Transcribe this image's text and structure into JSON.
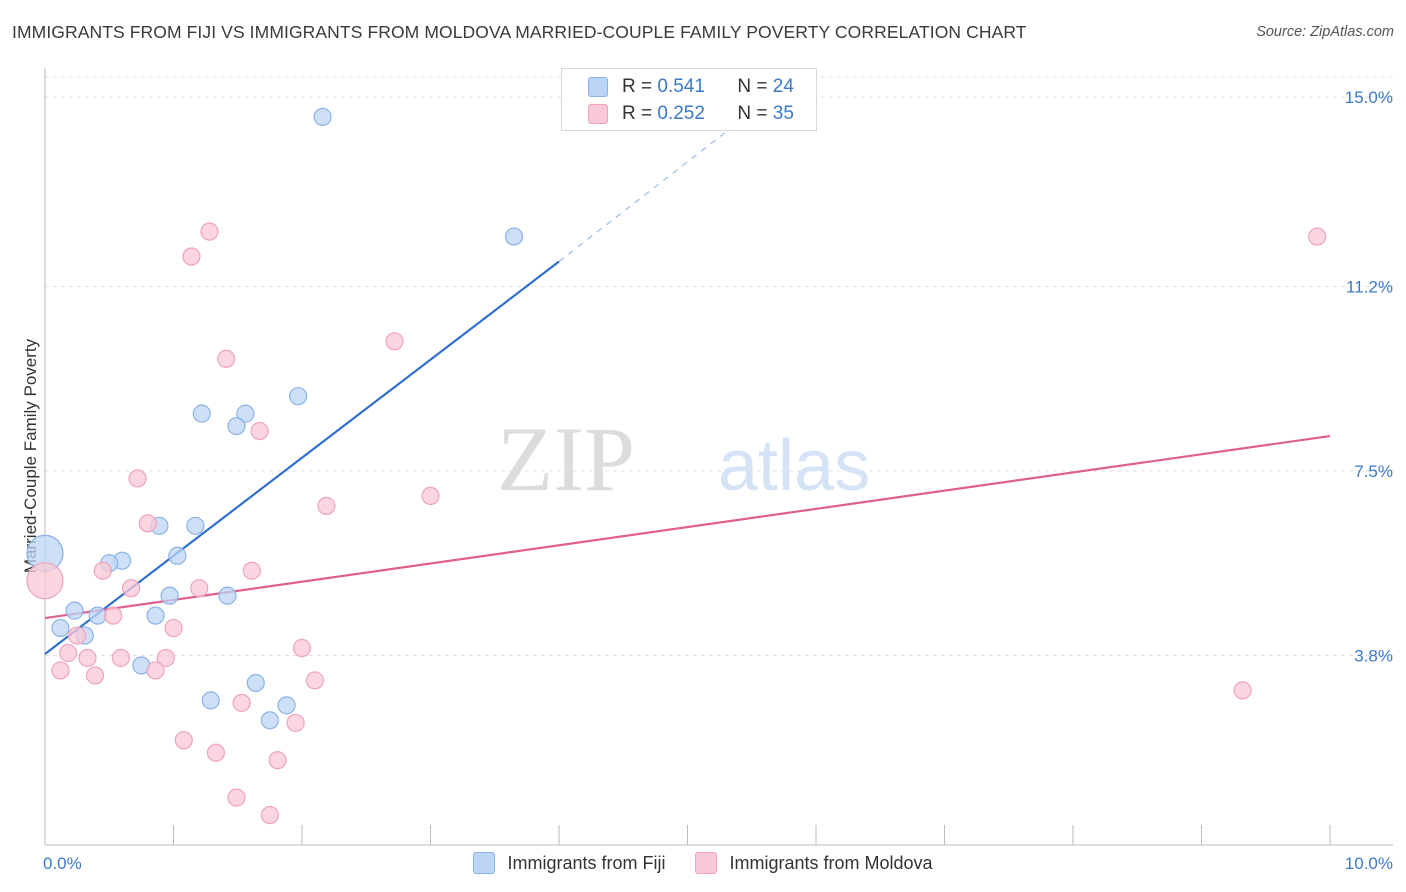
{
  "title": "IMMIGRANTS FROM FIJI VS IMMIGRANTS FROM MOLDOVA MARRIED-COUPLE FAMILY POVERTY CORRELATION CHART",
  "source": "Source: ZipAtlas.com",
  "watermark": {
    "zip": "ZIP",
    "atlas": "atlas"
  },
  "legend": {
    "r_label": "R =",
    "n_label": "N =",
    "rows": [
      {
        "r": "0.541",
        "n": "24"
      },
      {
        "r": "0.252",
        "n": "35"
      }
    ]
  },
  "colors": {
    "fiji_fill": "#bcd5f5",
    "fiji_stroke": "#8ab3e6",
    "fiji_line": "#2f6fd0",
    "moldova_fill": "#f9c8d6",
    "moldova_stroke": "#eea3b9",
    "moldova_line": "#e0608c",
    "value_text": "#3b7ac6"
  },
  "chart_data": {
    "type": "scatter",
    "title": "IMMIGRANTS FROM FIJI VS IMMIGRANTS FROM MOLDOVA MARRIED-COUPLE FAMILY POVERTY CORRELATION CHART",
    "xlabel": "",
    "ylabel": "Married-Couple Family Poverty",
    "xlim": [
      0,
      10
    ],
    "ylim": [
      0,
      15.4
    ],
    "x_tick_labels": [
      "0.0%",
      "10.0%"
    ],
    "y_ticks": [
      3.8,
      7.5,
      11.2,
      15.0
    ],
    "y_tick_labels": [
      "3.8%",
      "7.5%",
      "11.2%",
      "15.0%"
    ],
    "series": [
      {
        "name": "Immigrants from Fiji",
        "points": [
          {
            "x": 2.16,
            "y": 14.6
          },
          {
            "x": 3.65,
            "y": 12.2
          },
          {
            "x": 1.97,
            "y": 9.0
          },
          {
            "x": 1.22,
            "y": 8.65
          },
          {
            "x": 1.56,
            "y": 8.65
          },
          {
            "x": 1.49,
            "y": 8.4
          },
          {
            "x": 0.89,
            "y": 6.4
          },
          {
            "x": 1.17,
            "y": 6.4
          },
          {
            "x": 0.0,
            "y": 5.85
          },
          {
            "x": 1.03,
            "y": 5.8
          },
          {
            "x": 0.6,
            "y": 5.7
          },
          {
            "x": 0.5,
            "y": 5.65
          },
          {
            "x": 0.97,
            "y": 5.0
          },
          {
            "x": 1.42,
            "y": 5.0
          },
          {
            "x": 0.23,
            "y": 4.7
          },
          {
            "x": 0.86,
            "y": 4.6
          },
          {
            "x": 0.41,
            "y": 4.6
          },
          {
            "x": 0.12,
            "y": 4.35
          },
          {
            "x": 0.31,
            "y": 4.2
          },
          {
            "x": 0.75,
            "y": 3.6
          },
          {
            "x": 1.64,
            "y": 3.25
          },
          {
            "x": 1.29,
            "y": 2.9
          },
          {
            "x": 1.88,
            "y": 2.8
          },
          {
            "x": 1.75,
            "y": 2.5
          }
        ]
      },
      {
        "name": "Immigrants from Moldova",
        "points": [
          {
            "x": 1.28,
            "y": 12.3
          },
          {
            "x": 9.9,
            "y": 12.2
          },
          {
            "x": 1.14,
            "y": 11.8
          },
          {
            "x": 2.72,
            "y": 10.1
          },
          {
            "x": 1.41,
            "y": 9.75
          },
          {
            "x": 1.67,
            "y": 8.3
          },
          {
            "x": 0.72,
            "y": 7.35
          },
          {
            "x": 3.0,
            "y": 7.0
          },
          {
            "x": 2.19,
            "y": 6.8
          },
          {
            "x": 0.8,
            "y": 6.45
          },
          {
            "x": 0.45,
            "y": 5.5
          },
          {
            "x": 1.61,
            "y": 5.5
          },
          {
            "x": 0.0,
            "y": 5.3
          },
          {
            "x": 0.67,
            "y": 5.15
          },
          {
            "x": 1.2,
            "y": 5.15
          },
          {
            "x": 0.53,
            "y": 4.6
          },
          {
            "x": 1.0,
            "y": 4.35
          },
          {
            "x": 0.25,
            "y": 4.2
          },
          {
            "x": 0.18,
            "y": 3.85
          },
          {
            "x": 2.0,
            "y": 3.95
          },
          {
            "x": 0.33,
            "y": 3.75
          },
          {
            "x": 0.59,
            "y": 3.75
          },
          {
            "x": 0.94,
            "y": 3.75
          },
          {
            "x": 0.86,
            "y": 3.5
          },
          {
            "x": 0.12,
            "y": 3.5
          },
          {
            "x": 0.39,
            "y": 3.4
          },
          {
            "x": 2.1,
            "y": 3.3
          },
          {
            "x": 9.32,
            "y": 3.1
          },
          {
            "x": 1.53,
            "y": 2.85
          },
          {
            "x": 1.95,
            "y": 2.45
          },
          {
            "x": 1.08,
            "y": 2.1
          },
          {
            "x": 1.33,
            "y": 1.85
          },
          {
            "x": 1.81,
            "y": 1.7
          },
          {
            "x": 1.49,
            "y": 0.95
          },
          {
            "x": 1.75,
            "y": 0.6
          }
        ]
      }
    ],
    "trendlines": [
      {
        "series": "Immigrants from Fiji",
        "x0": 0.0,
        "y0": 3.83,
        "x1": 4.0,
        "y1": 11.7,
        "dashed_to_x": 5.3,
        "dashed_to_y": 14.3
      },
      {
        "series": "Immigrants from Moldova",
        "x0": 0.0,
        "y0": 4.55,
        "x1": 10.0,
        "y1": 8.2
      }
    ]
  }
}
